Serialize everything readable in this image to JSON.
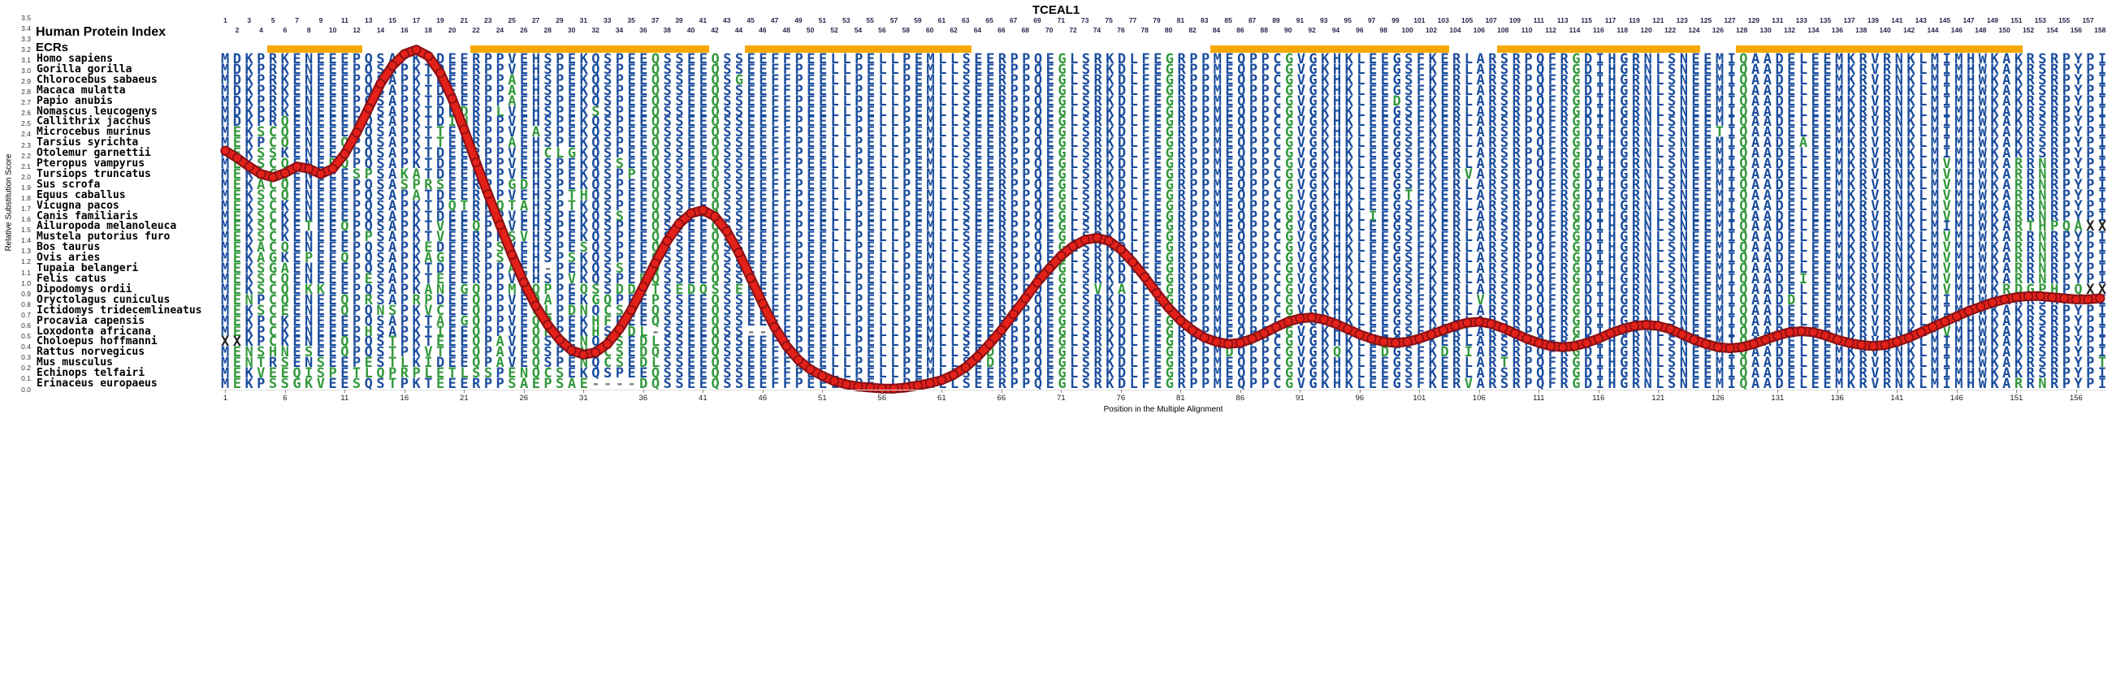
{
  "title": "TCEAL1",
  "labels": {
    "human_protein_index": "Human Protein Index",
    "ecrs": "ECRs"
  },
  "axes": {
    "y_label": "Relative Substitution Score",
    "x_label": "Position in the Multiple Alignment",
    "y_ticks": [
      "3.5",
      "3.4",
      "3.3",
      "3.2",
      "3.1",
      "3.0",
      "2.9",
      "2.8",
      "2.7",
      "2.6",
      "2.5",
      "2.4",
      "2.3",
      "2.2",
      "2.1",
      "2.0",
      "1.9",
      "1.8",
      "1.7",
      "1.6",
      "1.5",
      "1.4",
      "1.3",
      "1.2",
      "1.1",
      "1.0",
      "0.9",
      "0.8",
      "0.7",
      "0.6",
      "0.5",
      "0.4",
      "0.3",
      "0.2",
      "0.1",
      "0.0"
    ],
    "x_ticks": [
      1,
      6,
      11,
      16,
      21,
      26,
      31,
      36,
      41,
      46,
      51,
      56,
      61,
      66,
      71,
      76,
      81,
      86,
      91,
      96,
      101,
      106,
      111,
      116,
      121,
      126,
      131,
      136,
      141,
      146,
      151,
      156
    ]
  },
  "columns": {
    "count": 158
  },
  "ecr_regions": [
    {
      "start": 5,
      "end": 12
    },
    {
      "start": 22,
      "end": 41
    },
    {
      "start": 45,
      "end": 63
    },
    {
      "start": 84,
      "end": 103
    },
    {
      "start": 108,
      "end": 124
    },
    {
      "start": 128,
      "end": 151
    }
  ],
  "alignment": {
    "green_columns": [
      37,
      42,
      71,
      80,
      90,
      114,
      128
    ],
    "colors": {
      "match": "#1b4d9e",
      "mismatch": "#33993d",
      "gap": "#808080",
      "unknown": "#222222"
    },
    "species": [
      "Homo sapiens",
      "Gorilla gorilla",
      "Chlorocebus sabaeus",
      "Macaca mulatta",
      "Papio anubis",
      "Nomascus leucogenys",
      "Callithrix jacchus",
      "Microcebus murinus",
      "Tarsius syrichta",
      "Otolemur garnettii",
      "Pteropus vampyrus",
      "Tursiops truncatus",
      "Sus scrofa",
      "Equus caballus",
      "Vicugna pacos",
      "Canis familiaris",
      "Ailuropoda melanoleuca",
      "Mustela putorius furo",
      "Bos taurus",
      "Ovis aries",
      "Tupaia belangeri",
      "Felis catus",
      "Dipodomys ordii",
      "Oryctolagus cuniculus",
      "Ictidomys tridecemlineatus",
      "Procavia capensis",
      "Loxodonta africana",
      "Choloepus hoffmanni",
      "Rattus norvegicus",
      "Mus musculus",
      "Echinops telfairi",
      "Erinaceus europaeus"
    ],
    "sequences": [
      "MDKPRKENEEEPQSAPKTDEERPPVEHSPEKQSPEEQSSEEQSSEEFFPEELLPELLPEMLLSEERPPQEGLSRKDLFEGRPPMEQPPCGVGKHKLEEGSFKERLARSRPQFRGDIHGRNLSNEEMIQAADELEEMKRVRNKLMIMHWKAKRSRPYPI",
      "MDKPRKENEEEPQSAPKTDEERPPVEHSPEKQSPEEQSSEEQSSEEFFPEELLPELLPEMLLSEERPPQEGLSRKDLFEGRPPMEQPPCGVGKHKLEEGSFKERLARSRPQFRGDIHGRNLSNEEMIQAADELEEMKRVRNKLMIMHWKAKRSRPYPI",
      "MDKPRKENEEEPQSAPKTDEERPPAEHSPEKQSPEEQSSEEQSGEEFFPEELLPELLPEMLLSEERPPQEGLSRKDLFEGRPPMEQPPCGVGKHKLEEGSFKERLARSRPQFRGDIHGRNLSNEEMIQAADELEEMKRVRNKLMIMHWKAKRSRPYPI",
      "MDKPRKENEEEPQSAPKTDEERPPAEHSPEKQSPEEQSSEEQSSEEFFPEELLPELLPEMLLSEERPPQEGLSRKDLFEGRPPMEQPPCGVGKHKLEEGSFKERLARSRPQFRGDIHGRNLSNEEMIQAADELEEMKRVRNKLMIMHWKAKRSRPYPI",
      "MDKPRKENEEEPQSAPKTDEERPPAEHSPEKQSPEEQSSEEQSSEEFFPEELLPELLPEMLLSEERPPQEGLSRKDLFEGRPPMEQPPCGVGKHKLEEDSFKERLARSRPQFRGDIHGRNLSNEEMIQAADELEEMKRVRNKLMIMHWKAKRSRPYPI",
      "MDKPRKENEEEPQSAPKTDEDRPLVEHSPEKSSPEEQSSEEQSSEEFFPEELLPELLPEMLLSEERPPQEGLSRKDLFEGRPPMEQPPCGVGKHKLEEGSFKERLARSRPQFRGDIHGRNLSNEEMIQAADELEEMKRVRNKLMIMHWKAKRSRPYPI",
      "MDKPRQENEEEPQSAPKTDINRPPVEHSPEKQSPEEQSSEEQSSEEFFPEELLPELLPEMLLSEERPPQEGLSRKDLFEGRPPMEQPPCGVGKHKLEEGSFKERLARSRPQFRGDIHGRNLSNEEMIQAADELEEMKRVRNKLMIMHWKAKRSRPYPI",
      "MEKSCQENEEEPQSAPKTTEERPPVEASPEKQSPEEQSSEEQSSEEFFPEELLPELLPEMLLSEERPPQEGLSRKDLFEGRPPMEQPPCGVGKHKLEEGSFKERLARSRPQFRGDIHGRNLSNEETIQAADELEEMKRVRNKLMIMHWKAKRSRPYPI",
      "MEKPCQENEEQPQSAPKTTEERPPAEHSPEKQSPEEQSSEEQSSEEFFPEELLPELLPEMLLSEERPPQEGLSRKDLFEGRPPMEQPPCGVGKHKLEEGSFKERLARSRPQFRGDIHGRNLSNEEMIQAADEAEEMKRVRNKLMIMHWKAKRSRPYPI",
      "MEKSSKENEEQPQSAPKTDEERPPVEHCLGKQSPEEQSSEEQSSEEFFPEELLPELLPEMLLSEERPPQEGLSRKDLFEGRPPMEQPPCGVGKHKLEEGSFKERLARSRPQFRGDIHGRNLSNEEMIQAADELEEMKRVRNKLMIMHWKAKRSRPYPI",
      "MEKSCQENEDQPQSAPKTDEERPPVEHSPEKQSSEEQSSEEQSSEEFFPEELLPELLPEMLLSEERPPQEGLSRKDLFEGRPPMEQPPCGVGKHKLEEGSFKERLARSRPQFRGDIHGRNLSNEEMIQAADELEEMKRVRNKLMVMHWKARRNRPYPI",
      "MEKACQENEEESPSAKATDEERPPVEHSPEKQSPPEQSSEEQSSEEFFPEELLPELLPEMLLSEERPPQEGLSRKDLFEGRPPMEQPPCGVGKHKLEEGSFKERVARSRPQFRGDIHGRNLSNEEMIQAADELEEMKRVRNKLMVMHWKARRNRPYPI",
      "MEKACQENEEEPQSASPRSEERPPGDHSPEKQSPEEQSSEEQSSEEFFPEELLPELLPEMLLSEERPPQEGLSRKDLFEGRPPMEQPPCGVGKHKLEEGSFKERLARSRPQFRGDIHGRNLSNEEMIQAADELEEMKRVRNKLMVMHWKARRNRPYPI",
      "MEKSCQENEEEPQSAPATDEERPPVEHSPTHQSPEEQSSEEQSSEEFFPEELLPELLPEMLLSEERPPQEGLSRKDLFEGRPPMEQPPCGVGKHKLEEGTFKERLARSRPQFRGDIHGRNLSNEEMIQAADELEEMKRVRNKLMVMHWKARRNRPYPI",
      "MEKSCKENEEEPQSAPKTDQTRPQTAHSPTKQSPEEQSSEEQSSEEFFPEELLPELLPEMLLSEERPPQEGLSRKDLFEGRPPMEQPPCGVGKHKLEEGSFKERLARSRPQFRGDIHGRNLSNEEMIQAADELEEMKRVRNKLMVMHWKARRNRPYPI",
      "MEKSCKENEEEPQSAPKTDEERPPVEHSPEKQSSEEQSSEEQSSEEFFPEELLPELLPEMLLSEERPPQEGLSRKDLFEGRPPMEQPPCGVGKHKLIEGSFKERLARSRPQFRGDIHGRNLSNEEMIQAADELEEMKRVRNKLMVMHWKARRNRPYPI",
      "MEKSCKETEEQPQSAPKTVEEQPPVEHSPEKQSPEEQSSEEQSSEEFFPEELLPELLPEMLLSEERPPQEGLSRKDLFEGRPPMEQPPCGVGKHKLEEGSFKERLARSRPQFRGDIHGRNLSNEEMIQAADELEEMKRVRNKLMIMHWKARTHPQAXX",
      "MEKSCKENEEEPPSAPKTVEERPPSVHSPEKQSPEEQSSEEQSSEEFFPEELLPELLPEMLLSEERPPQEGLSRKDLFEGRPPMEQPPCGVGKHKLEEGSFKERLARSRPQFRGDIHGRNLSNEEMIQAADELEEMKRVRNKLMVMHWKARRNRPYPI",
      "MEKACQENEEEPQSAPKEDEERPSVEHSPESQSPEEQSSEEQSSEEFFPEELLPELLPEMLLSEERPPQEGLSRKDLFEGRPPMEQPPCGVGKHKLEEGSFKERLARSRPQFRGDIHGRNLSNEEMIQAADELEEMKRVRNKLMVMHWKARRNRPYPI",
      "MEKAGKEPEEQPQSAPKAGEERPSVEHSPSKQSPEEQSSEEQSSEEFFPEELLPELLPEMLLSEERPPQEGLSRKDLFEGRPPMEQPPCGVGKHKLEEGSFKERLARSRPQFRGDIHGRNLSNEEMIQAADELEEMKRVRNKLMVMHWKARRNRPYPI",
      "MEKSGAENEEEPQSAPKTDEERPPAEH-PEKQSSEEQSSEEQSSEEFFPEELLPELLPEMLLSEERPPQEGLSRKDLFEGRPPMEQPPCGVGKHKLEEGSFKERLARSRPQFRGDIHGRNLSNEEMIQAADELEEMKRVRNKLMVMHWKARRNRPYPI",
      "MEKSCQENEEEPESAPKTEEERPPVEHSPVKQSPEDQSSEEQSSEEFFPEELLPELLPEMLLSEERPPQEGLSRKDLFEGRPPMEQPPCGVGKHKLEEGSFKERLARSRPQFRGDIHGRNLSNEEMIQAADEIEEMKRVRNKLMVMHWKARRNRPYPI",
      "MEKSCQEKKEEPQSAPKANEGQPPMEQPPEQSSDDQTSEDQSSEEEFFPEELLPELLPEMLLSEERPPQEGLSVKALFEGRPPMEQPPCGVGKHKLEEGSFKERLARSRPQFRGDIHGRNLSNEEMIQAADELEEMKRVRNKLMVMHWKRDGPHPQXX",
      "MENPCQENEEQPRSAPRPDEEQPPVEQAPEKGQPEEPSSEEQSSEEFFPEELLPELLPEMLLSEERPPQEGLSRKDLFEGRPPMEQPPCGVGKHKLEEGSFKERLVRSRPQFRGDIHGRNLSNEEMIQAADDLEEMKRVRNKLMIMHWKAKRSRPYPI",
      "MEKSCEENEEQPQNSPKVCEEQPPVEGLPDNQCSEEQSSEEQSSEEFFPEELLPELLPEMLLSEERPPQEGLSRKDLFEGRPPMEQPPCGVGKHKLEEGSFKERLARSRPQFRGDIHGRNLSNEEMIQAADELEEMKRVRNKLMIMHWKAKRSRPYPI",
      "MEKPCKENEEEPQSAPKTAEGQPPVEQPPEKHFPEEQSSEEQSSEEFFPEELLPELLPEMLLSEERPPQEGLSRKDLFEGRPPMEQPPCGVGKHKLEEGSFKERLARSRPQFRGDIHGRNLSNEEMIQAADELEEMKRVRNKLMIMHWKAKRSRPYPI",
      "MEKPCKENEEEPHSAPKTIEEQPPVEQPPEKHSPDL-SSEEQSS--FFPEELLPELLPEMLLSEERPPQEGLSRKDLFEGRPPMEQPPCGVGKHKLEEGSFKERLARSRPQFRGDIHGRNLSNEEMIQAADELEEMKRVRNKLMVMHWKAKRSRPYPI",
      "XXKPCKENEEQPQSTPKTEEEQPAVEQSPENQCSEDLSSEEQSSEEFFPEELLPELLPEMLLSEERPPQEGLSRKDLFEGRPPMEQPPCGVGKHKLEEGSFKERLARSRPQFRGDIHGRNLSNEEMIQAADELEEMKRVRNKLMIMHWKAKRSRPYPI",
      "MENSHNESEEQPQSTPKVTEEQPAVEQSPENQCSEDQSSEEQSSEEFFPEELLPELLPEMLLSEDRPPQEGLSRKDLFEGRPPMDQPPCGVGKQKLEDGSFKDRIARSRPQFRGDIHGRNLSNEEMIQAADELEEMKRVRNKLMIMHWKAKRSRPYPI",
      "MENTRSENSEEPESTLKIDEEQPAVEQSPENQCSEDLSSEEQSSEEFFPEELLPELLPEMLLSEDRPPQEGLSRKDLFEGRPPMEQPPCGVGKHKLEEGSFKERLARTRPQFRGDIHGRNLSNEEMIQAADELEEMKRVRNKLMIMHWKAKRSRPYPT",
      "MEKVEEQISPETLQPRPLETLSSPENQCSEKQSPEEQSSEEQSSEEFFPEELLPELLPEMLLSEERPPQEGLSRKDLFEGRPPMEQPPCGVGKHKLEEGSFKERLARSRPQFRGDIHGRNLSNEEMIQAADELEEMKRVRNKLMIMHWKAKRSRPYPI",
      "MEKPSSGKVEESQSTPKTEEERPPSAEPSAE----DQSSEEQSSEEFFPEELLPELLPEMLLSEERPPQEGLSRKDLFEGRPPMEQPPCGVGKHKLEEGSFKERVARSRPQFRGDIHGRNLSNEEMIQAADELEEMKRVRNKLMIMHWKARRNRPYPI"
    ]
  },
  "chart_data": {
    "type": "line",
    "title": "TCEAL1",
    "xlabel": "Position in the Multiple Alignment",
    "ylabel": "Relative Substitution Score",
    "x_first": 1,
    "x_last": 158,
    "ylim": [
      0.0,
      3.5
    ],
    "grid": false,
    "legend": "none",
    "line_color": "#e32119",
    "marker_edge_color": "#871015",
    "ecr_bar_color": "#F7A800",
    "scores": [
      2.25,
      2.18,
      2.1,
      2.03,
      2.0,
      2.04,
      2.1,
      2.08,
      2.03,
      2.08,
      2.22,
      2.42,
      2.65,
      2.88,
      3.05,
      3.16,
      3.2,
      3.14,
      2.98,
      2.74,
      2.45,
      2.14,
      1.84,
      1.55,
      1.27,
      1.01,
      0.79,
      0.61,
      0.47,
      0.37,
      0.33,
      0.35,
      0.43,
      0.57,
      0.75,
      0.97,
      1.19,
      1.4,
      1.56,
      1.66,
      1.69,
      1.63,
      1.49,
      1.29,
      1.05,
      0.81,
      0.59,
      0.41,
      0.28,
      0.19,
      0.13,
      0.08,
      0.05,
      0.03,
      0.02,
      0.01,
      0.01,
      0.02,
      0.04,
      0.06,
      0.09,
      0.14,
      0.21,
      0.31,
      0.43,
      0.56,
      0.71,
      0.86,
      1.01,
      1.14,
      1.26,
      1.35,
      1.41,
      1.43,
      1.4,
      1.32,
      1.2,
      1.06,
      0.91,
      0.77,
      0.65,
      0.56,
      0.49,
      0.45,
      0.43,
      0.44,
      0.48,
      0.53,
      0.59,
      0.64,
      0.67,
      0.68,
      0.66,
      0.62,
      0.57,
      0.52,
      0.48,
      0.45,
      0.44,
      0.45,
      0.48,
      0.52,
      0.56,
      0.6,
      0.63,
      0.64,
      0.62,
      0.58,
      0.53,
      0.48,
      0.44,
      0.41,
      0.4,
      0.41,
      0.44,
      0.48,
      0.53,
      0.57,
      0.6,
      0.61,
      0.6,
      0.57,
      0.52,
      0.47,
      0.43,
      0.4,
      0.39,
      0.4,
      0.43,
      0.47,
      0.51,
      0.54,
      0.55,
      0.54,
      0.51,
      0.47,
      0.44,
      0.42,
      0.41,
      0.42,
      0.45,
      0.49,
      0.54,
      0.59,
      0.64,
      0.69,
      0.74,
      0.78,
      0.82,
      0.85,
      0.87,
      0.88,
      0.88,
      0.87,
      0.86,
      0.85,
      0.85,
      0.86
    ]
  }
}
